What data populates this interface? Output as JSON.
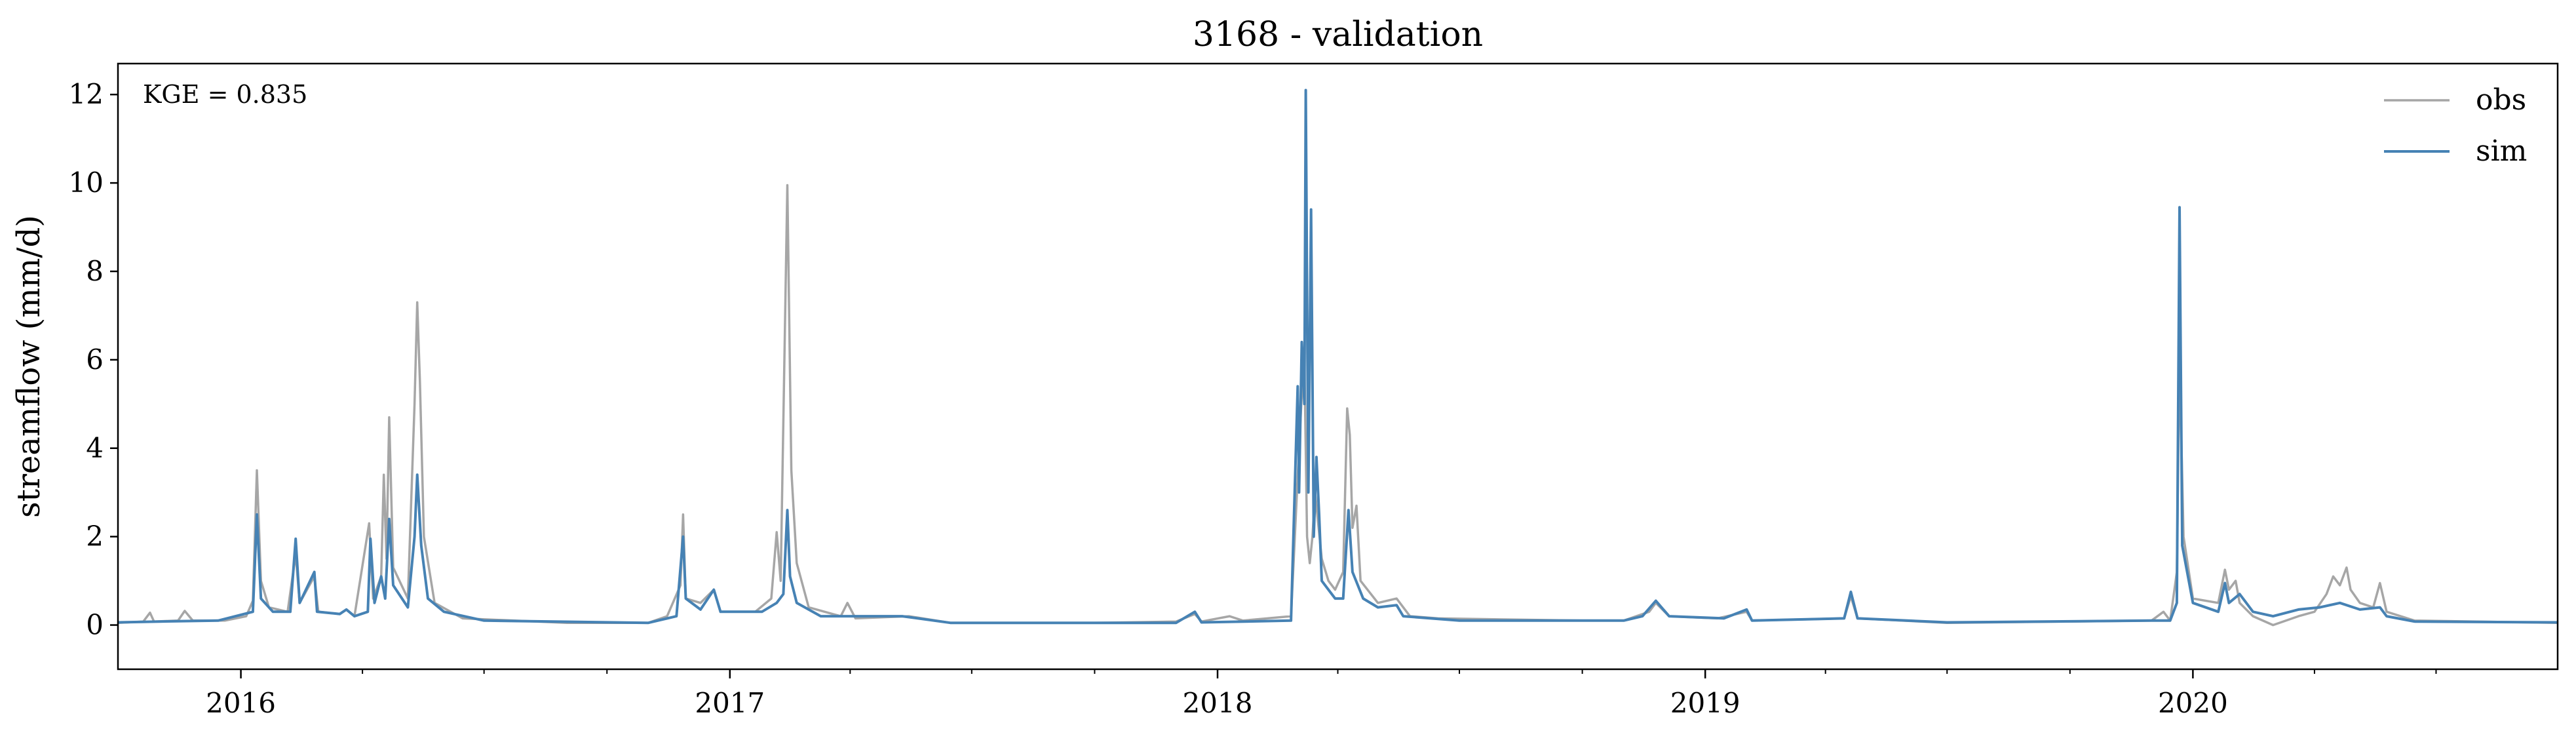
{
  "chart_data": {
    "type": "line",
    "title": "3168 - validation",
    "xlabel": "",
    "ylabel": "streamflow (mm/d)",
    "annotation": "KGE = 0.835",
    "xlim": [
      "2015-10-01",
      "2020-09-30"
    ],
    "ylim": [
      -1,
      12.7
    ],
    "yticks": [
      0,
      2,
      4,
      6,
      8,
      10,
      12
    ],
    "xticks": [
      {
        "date": "2016-01-01",
        "label": "2016"
      },
      {
        "date": "2017-01-01",
        "label": "2017"
      },
      {
        "date": "2018-01-01",
        "label": "2018"
      },
      {
        "date": "2019-01-01",
        "label": "2019"
      },
      {
        "date": "2020-01-01",
        "label": "2020"
      }
    ],
    "legend": {
      "position": "top-right"
    },
    "grid": false,
    "series": [
      {
        "name": "obs",
        "color": "#a6a6a6",
        "points": [
          [
            "2015-10-01",
            0.05
          ],
          [
            "2015-10-20",
            0.08
          ],
          [
            "2015-10-25",
            0.28
          ],
          [
            "2015-10-28",
            0.08
          ],
          [
            "2015-11-15",
            0.1
          ],
          [
            "2015-11-20",
            0.32
          ],
          [
            "2015-11-26",
            0.1
          ],
          [
            "2015-12-20",
            0.1
          ],
          [
            "2016-01-05",
            0.2
          ],
          [
            "2016-01-10",
            0.55
          ],
          [
            "2016-01-13",
            3.5
          ],
          [
            "2016-01-16",
            1.0
          ],
          [
            "2016-01-22",
            0.4
          ],
          [
            "2016-02-05",
            0.3
          ],
          [
            "2016-02-11",
            1.6
          ],
          [
            "2016-02-14",
            0.5
          ],
          [
            "2016-02-25",
            1.1
          ],
          [
            "2016-02-28",
            0.3
          ],
          [
            "2016-03-15",
            0.25
          ],
          [
            "2016-03-20",
            0.35
          ],
          [
            "2016-03-26",
            0.2
          ],
          [
            "2016-04-06",
            2.3
          ],
          [
            "2016-04-09",
            0.6
          ],
          [
            "2016-04-15",
            1.1
          ],
          [
            "2016-04-17",
            3.4
          ],
          [
            "2016-04-19",
            1.5
          ],
          [
            "2016-04-21",
            4.7
          ],
          [
            "2016-04-24",
            1.3
          ],
          [
            "2016-05-05",
            0.6
          ],
          [
            "2016-05-10",
            5.0
          ],
          [
            "2016-05-12",
            7.3
          ],
          [
            "2016-05-14",
            5.5
          ],
          [
            "2016-05-17",
            2.0
          ],
          [
            "2016-05-25",
            0.5
          ],
          [
            "2016-06-15",
            0.15
          ],
          [
            "2016-09-01",
            0.05
          ],
          [
            "2016-11-01",
            0.05
          ],
          [
            "2016-11-15",
            0.2
          ],
          [
            "2016-11-25",
            0.9
          ],
          [
            "2016-11-27",
            2.5
          ],
          [
            "2016-11-29",
            0.6
          ],
          [
            "2016-12-10",
            0.5
          ],
          [
            "2016-12-20",
            0.8
          ],
          [
            "2016-12-25",
            0.3
          ],
          [
            "2017-01-20",
            0.3
          ],
          [
            "2017-02-01",
            0.6
          ],
          [
            "2017-02-05",
            2.1
          ],
          [
            "2017-02-08",
            1.0
          ],
          [
            "2017-02-13",
            9.95
          ],
          [
            "2017-02-16",
            3.5
          ],
          [
            "2017-02-20",
            1.4
          ],
          [
            "2017-03-01",
            0.4
          ],
          [
            "2017-03-25",
            0.2
          ],
          [
            "2017-03-30",
            0.5
          ],
          [
            "2017-04-05",
            0.15
          ],
          [
            "2017-05-15",
            0.2
          ],
          [
            "2017-06-15",
            0.05
          ],
          [
            "2017-10-01",
            0.05
          ],
          [
            "2017-12-01",
            0.08
          ],
          [
            "2017-12-15",
            0.25
          ],
          [
            "2017-12-20",
            0.08
          ],
          [
            "2018-01-10",
            0.2
          ],
          [
            "2018-01-20",
            0.1
          ],
          [
            "2018-02-25",
            0.2
          ],
          [
            "2018-03-03",
            4.0
          ],
          [
            "2018-03-05",
            5.2
          ],
          [
            "2018-03-07",
            6.0
          ],
          [
            "2018-03-09",
            2.0
          ],
          [
            "2018-03-11",
            1.4
          ],
          [
            "2018-03-13",
            2.0
          ],
          [
            "2018-03-15",
            3.0
          ],
          [
            "2018-03-17",
            2.4
          ],
          [
            "2018-03-20",
            1.5
          ],
          [
            "2018-03-25",
            1.0
          ],
          [
            "2018-03-30",
            0.8
          ],
          [
            "2018-04-05",
            1.2
          ],
          [
            "2018-04-08",
            4.9
          ],
          [
            "2018-04-10",
            4.3
          ],
          [
            "2018-04-12",
            2.2
          ],
          [
            "2018-04-15",
            2.7
          ],
          [
            "2018-04-18",
            1.0
          ],
          [
            "2018-05-01",
            0.5
          ],
          [
            "2018-05-15",
            0.6
          ],
          [
            "2018-05-25",
            0.2
          ],
          [
            "2018-06-15",
            0.15
          ],
          [
            "2018-10-01",
            0.1
          ],
          [
            "2018-11-01",
            0.1
          ],
          [
            "2018-11-20",
            0.3
          ],
          [
            "2018-11-25",
            0.5
          ],
          [
            "2018-12-05",
            0.2
          ],
          [
            "2019-01-10",
            0.15
          ],
          [
            "2019-02-01",
            0.3
          ],
          [
            "2019-02-05",
            0.1
          ],
          [
            "2019-04-15",
            0.15
          ],
          [
            "2019-04-20",
            0.65
          ],
          [
            "2019-04-25",
            0.15
          ],
          [
            "2019-07-01",
            0.05
          ],
          [
            "2019-12-01",
            0.1
          ],
          [
            "2019-12-10",
            0.3
          ],
          [
            "2019-12-15",
            0.1
          ],
          [
            "2019-12-20",
            1.2
          ],
          [
            "2019-12-22",
            6.0
          ],
          [
            "2019-12-25",
            2.0
          ],
          [
            "2020-01-01",
            0.6
          ],
          [
            "2020-01-20",
            0.5
          ],
          [
            "2020-01-25",
            1.25
          ],
          [
            "2020-01-28",
            0.8
          ],
          [
            "2020-02-02",
            1.0
          ],
          [
            "2020-02-05",
            0.5
          ],
          [
            "2020-02-15",
            0.2
          ],
          [
            "2020-03-01",
            0.0
          ],
          [
            "2020-03-20",
            0.2
          ],
          [
            "2020-04-01",
            0.3
          ],
          [
            "2020-04-10",
            0.7
          ],
          [
            "2020-04-15",
            1.1
          ],
          [
            "2020-04-20",
            0.9
          ],
          [
            "2020-04-25",
            1.3
          ],
          [
            "2020-04-28",
            0.8
          ],
          [
            "2020-05-05",
            0.5
          ],
          [
            "2020-05-15",
            0.4
          ],
          [
            "2020-05-20",
            0.95
          ],
          [
            "2020-05-25",
            0.3
          ],
          [
            "2020-06-15",
            0.1
          ],
          [
            "2020-09-30",
            0.05
          ]
        ]
      },
      {
        "name": "sim",
        "color": "#4682b4",
        "points": [
          [
            "2015-10-01",
            0.06
          ],
          [
            "2015-11-01",
            0.08
          ],
          [
            "2015-12-15",
            0.1
          ],
          [
            "2016-01-10",
            0.3
          ],
          [
            "2016-01-13",
            2.5
          ],
          [
            "2016-01-16",
            0.6
          ],
          [
            "2016-01-25",
            0.3
          ],
          [
            "2016-02-07",
            0.3
          ],
          [
            "2016-02-11",
            1.95
          ],
          [
            "2016-02-14",
            0.5
          ],
          [
            "2016-02-25",
            1.2
          ],
          [
            "2016-02-27",
            0.3
          ],
          [
            "2016-03-15",
            0.25
          ],
          [
            "2016-03-20",
            0.35
          ],
          [
            "2016-03-26",
            0.2
          ],
          [
            "2016-04-05",
            0.3
          ],
          [
            "2016-04-07",
            1.95
          ],
          [
            "2016-04-10",
            0.5
          ],
          [
            "2016-04-15",
            1.1
          ],
          [
            "2016-04-18",
            0.6
          ],
          [
            "2016-04-21",
            2.4
          ],
          [
            "2016-04-24",
            0.9
          ],
          [
            "2016-05-05",
            0.4
          ],
          [
            "2016-05-10",
            2.0
          ],
          [
            "2016-05-12",
            3.4
          ],
          [
            "2016-05-15",
            1.8
          ],
          [
            "2016-05-20",
            0.6
          ],
          [
            "2016-06-01",
            0.3
          ],
          [
            "2016-07-01",
            0.1
          ],
          [
            "2016-11-01",
            0.05
          ],
          [
            "2016-11-22",
            0.2
          ],
          [
            "2016-11-27",
            2.0
          ],
          [
            "2016-11-29",
            0.6
          ],
          [
            "2016-12-10",
            0.35
          ],
          [
            "2016-12-20",
            0.8
          ],
          [
            "2016-12-25",
            0.3
          ],
          [
            "2017-01-25",
            0.3
          ],
          [
            "2017-02-05",
            0.5
          ],
          [
            "2017-02-10",
            0.7
          ],
          [
            "2017-02-13",
            2.6
          ],
          [
            "2017-02-15",
            1.1
          ],
          [
            "2017-02-20",
            0.5
          ],
          [
            "2017-03-10",
            0.2
          ],
          [
            "2017-05-10",
            0.2
          ],
          [
            "2017-06-15",
            0.05
          ],
          [
            "2017-12-01",
            0.05
          ],
          [
            "2017-12-15",
            0.3
          ],
          [
            "2017-12-20",
            0.06
          ],
          [
            "2018-02-25",
            0.1
          ],
          [
            "2018-03-02",
            5.4
          ],
          [
            "2018-03-03",
            3.0
          ],
          [
            "2018-03-05",
            6.4
          ],
          [
            "2018-03-07",
            5.0
          ],
          [
            "2018-03-08",
            12.1
          ],
          [
            "2018-03-10",
            3.0
          ],
          [
            "2018-03-12",
            9.4
          ],
          [
            "2018-03-14",
            2.0
          ],
          [
            "2018-03-16",
            3.8
          ],
          [
            "2018-03-18",
            2.5
          ],
          [
            "2018-03-20",
            1.0
          ],
          [
            "2018-03-30",
            0.6
          ],
          [
            "2018-04-05",
            0.6
          ],
          [
            "2018-04-09",
            2.6
          ],
          [
            "2018-04-12",
            1.2
          ],
          [
            "2018-04-20",
            0.6
          ],
          [
            "2018-05-01",
            0.4
          ],
          [
            "2018-05-15",
            0.45
          ],
          [
            "2018-05-20",
            0.2
          ],
          [
            "2018-07-01",
            0.1
          ],
          [
            "2018-11-01",
            0.1
          ],
          [
            "2018-11-15",
            0.2
          ],
          [
            "2018-11-25",
            0.55
          ],
          [
            "2018-12-05",
            0.2
          ],
          [
            "2019-01-15",
            0.15
          ],
          [
            "2019-02-01",
            0.35
          ],
          [
            "2019-02-05",
            0.1
          ],
          [
            "2019-04-15",
            0.15
          ],
          [
            "2019-04-20",
            0.75
          ],
          [
            "2019-04-25",
            0.15
          ],
          [
            "2019-07-01",
            0.06
          ],
          [
            "2019-12-01",
            0.1
          ],
          [
            "2019-12-15",
            0.1
          ],
          [
            "2019-12-20",
            0.5
          ],
          [
            "2019-12-22",
            9.45
          ],
          [
            "2019-12-24",
            1.8
          ],
          [
            "2020-01-01",
            0.5
          ],
          [
            "2020-01-20",
            0.3
          ],
          [
            "2020-01-25",
            0.95
          ],
          [
            "2020-01-28",
            0.5
          ],
          [
            "2020-02-05",
            0.7
          ],
          [
            "2020-02-15",
            0.3
          ],
          [
            "2020-03-01",
            0.2
          ],
          [
            "2020-03-20",
            0.35
          ],
          [
            "2020-04-05",
            0.4
          ],
          [
            "2020-04-20",
            0.5
          ],
          [
            "2020-05-05",
            0.35
          ],
          [
            "2020-05-20",
            0.4
          ],
          [
            "2020-05-25",
            0.2
          ],
          [
            "2020-06-15",
            0.08
          ],
          [
            "2020-09-30",
            0.06
          ]
        ]
      }
    ]
  }
}
